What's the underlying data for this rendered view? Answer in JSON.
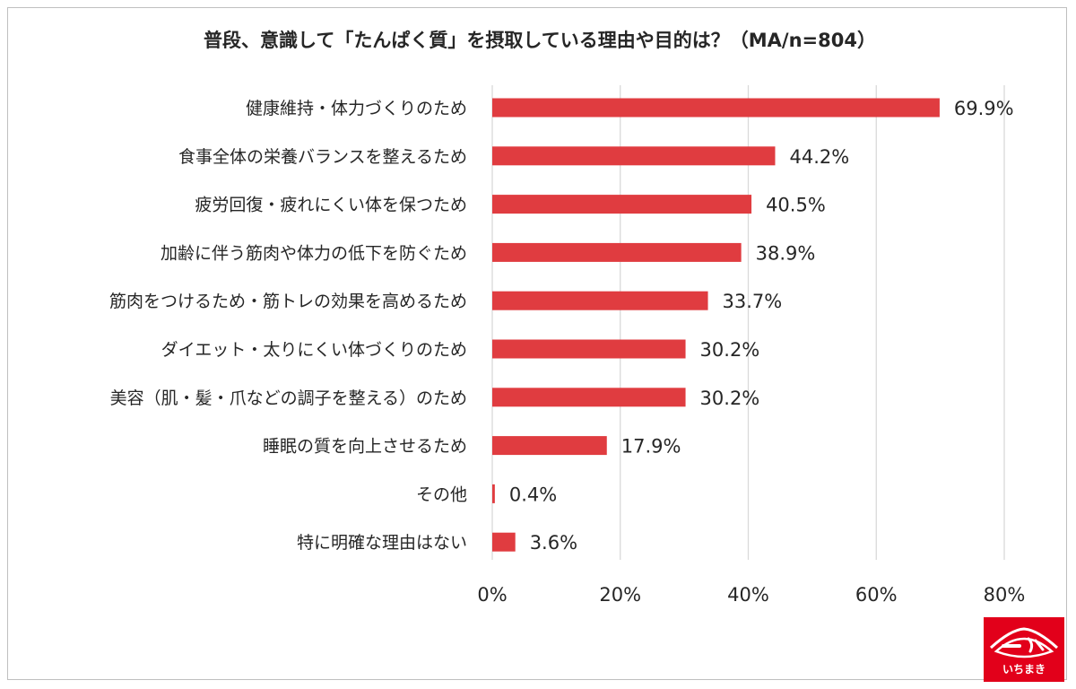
{
  "chart_data": {
    "type": "bar",
    "orientation": "horizontal",
    "title": "普段、意識して「たんぱく質」を摂取している理由や目的は？（MA/n=804）",
    "categories": [
      "健康維持・体力づくりのため",
      "食事全体の栄養バランスを整えるため",
      "疲労回復・疲れにくい体を保つため",
      "加齢に伴う筋肉や体力の低下を防ぐため",
      "筋肉をつけるため・筋トレの効果を高めるため",
      "ダイエット・太りにくい体づくりのため",
      "美容（肌・髪・爪などの調子を整える）のため",
      "睡眠の質を向上させるため",
      "その他",
      "特に明確な理由はない"
    ],
    "values": [
      69.9,
      44.2,
      40.5,
      38.9,
      33.7,
      30.2,
      30.2,
      17.9,
      0.4,
      3.6
    ],
    "value_labels": [
      "69.9%",
      "44.2%",
      "40.5%",
      "38.9%",
      "33.7%",
      "30.2%",
      "30.2%",
      "17.9%",
      "0.4%",
      "3.6%"
    ],
    "x_ticks": [
      0,
      20,
      40,
      60,
      80
    ],
    "x_tick_labels": [
      "0%",
      "20%",
      "40%",
      "60%",
      "80%"
    ],
    "xlim": [
      0,
      80
    ],
    "grid": true,
    "legend": "none",
    "colors": {
      "bar": "#e03c40",
      "grid": "#d9d9d9",
      "text": "#262626"
    }
  },
  "logo": {
    "text": "いちまき",
    "color": "#e2001a"
  }
}
